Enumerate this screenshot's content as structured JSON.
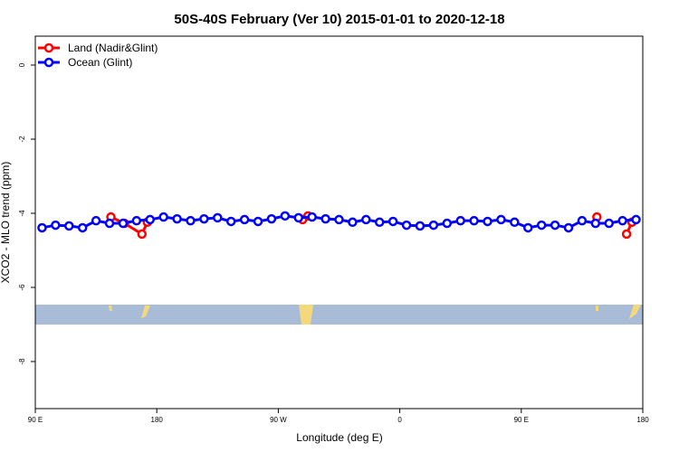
{
  "chart_data": {
    "type": "line",
    "title": "50S-40S February (Ver 10)   2015-01-01 to 2020-12-18",
    "x_label": "Longitude (deg E)",
    "y_label": "XCO2 - MLO trend (ppm)",
    "xlim": [
      90,
      540
    ],
    "ylim": [
      -9.27,
      0.78
    ],
    "xticks": [
      {
        "value": 90,
        "label": "90 E"
      },
      180,
      {
        "value": 270,
        "label": "90 W"
      },
      {
        "value": 360,
        "label": "0"
      },
      {
        "value": 450,
        "label": "90 E"
      },
      {
        "value": 540,
        "label": "180"
      }
    ],
    "yticks": [
      0,
      -2,
      -4,
      -6,
      -8
    ],
    "legend": "top-left",
    "series": [
      {
        "name": "Land (Nadir&Glint)",
        "color": "#ff0000",
        "x": [
          146,
          156,
          169,
          173,
          null,
          288,
          292,
          null,
          506,
          null,
          528,
          532
        ],
        "values": [
          -4.1,
          -4.27,
          -4.56,
          -4.24,
          null,
          -4.17,
          -4.07,
          null,
          -4.1,
          null,
          -4.56,
          -4.24
        ]
      },
      {
        "name": "Ocean (Glint)",
        "color": "#0000ff",
        "x": [
          95,
          105,
          115,
          125,
          135,
          145,
          155,
          165,
          175,
          185,
          195,
          205,
          215,
          225,
          235,
          245,
          255,
          265,
          275,
          285,
          295,
          305,
          315,
          325,
          335,
          345,
          355,
          365,
          375,
          385,
          395,
          405,
          415,
          425,
          435,
          445,
          455,
          465,
          475,
          485,
          495,
          505,
          515,
          525,
          535
        ],
        "values": [
          -4.39,
          -4.32,
          -4.34,
          -4.39,
          -4.2,
          -4.27,
          -4.27,
          -4.2,
          -4.17,
          -4.1,
          -4.15,
          -4.2,
          -4.15,
          -4.12,
          -4.22,
          -4.17,
          -4.22,
          -4.15,
          -4.07,
          -4.12,
          -4.1,
          -4.15,
          -4.17,
          -4.24,
          -4.17,
          -4.24,
          -4.22,
          -4.32,
          -4.34,
          -4.32,
          -4.27,
          -4.2,
          -4.2,
          -4.22,
          -4.17,
          -4.24,
          -4.39,
          -4.32,
          -4.32,
          -4.39,
          -4.2,
          -4.27,
          -4.27,
          -4.2,
          -4.17
        ]
      }
    ]
  }
}
